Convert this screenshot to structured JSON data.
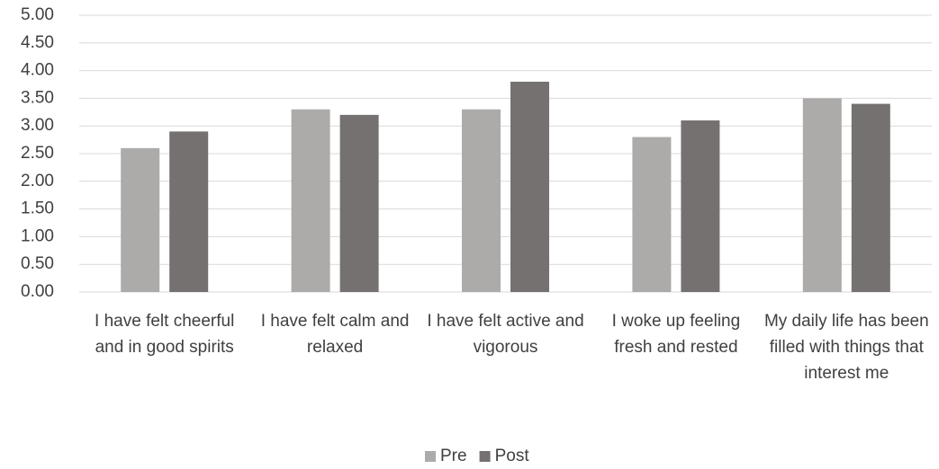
{
  "chart_data": {
    "type": "bar",
    "categories": [
      "I have felt cheerful and in good spirits",
      "I have felt calm and relaxed",
      "I have felt active and vigorous",
      "I woke up feeling fresh and rested",
      "My daily life has been filled with things that interest me"
    ],
    "series": [
      {
        "name": "Pre",
        "color": "#adaaaa",
        "values": [
          2.6,
          3.3,
          3.3,
          2.8,
          3.5
        ]
      },
      {
        "name": "Post",
        "color": "#767171",
        "values": [
          2.9,
          3.2,
          3.8,
          3.1,
          3.4
        ]
      }
    ],
    "ylim": [
      0,
      5
    ],
    "yticks": [
      {
        "value": 0,
        "label": "0.00"
      },
      {
        "value": 0.5,
        "label": "0.50"
      },
      {
        "value": 1,
        "label": "1.00"
      },
      {
        "value": 1.5,
        "label": "1.50"
      },
      {
        "value": 2,
        "label": "2.00"
      },
      {
        "value": 2.5,
        "label": "2.50"
      },
      {
        "value": 3,
        "label": "3.00"
      },
      {
        "value": 3.5,
        "label": "3.50"
      },
      {
        "value": 4,
        "label": "4.00"
      },
      {
        "value": 4.5,
        "label": "4.50"
      },
      {
        "value": 5,
        "label": "5.00"
      }
    ],
    "grid": true,
    "legend": "bottom"
  }
}
